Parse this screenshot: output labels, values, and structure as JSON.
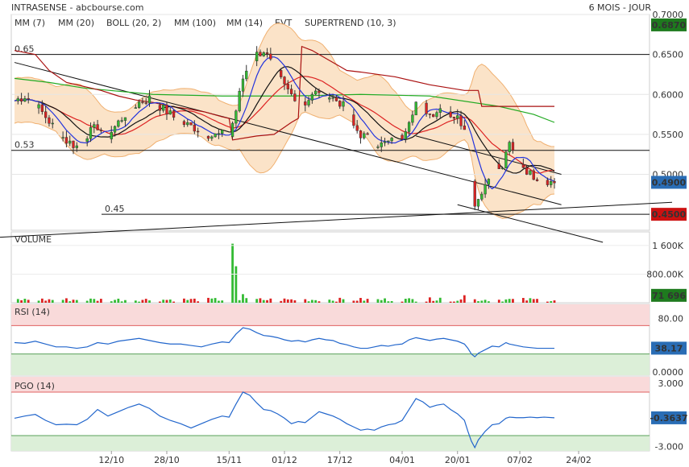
{
  "header": {
    "title": "INTRASENSE - abcbourse.com",
    "period": "6 MOIS - JOUR"
  },
  "legend": [
    {
      "label": "MM (7)",
      "color": "#2233dd"
    },
    {
      "label": "MM (20)",
      "color": "#dd2222"
    },
    {
      "label": "BOLL (20, 2)",
      "color": "#f0a050"
    },
    {
      "label": "MM (100)",
      "color": "#22aa22"
    },
    {
      "label": "MM (14)",
      "color": "#111111"
    },
    {
      "label": "EVT",
      "color": "#111111"
    },
    {
      "label": "SUPERTREND (10, 3)",
      "color": "#aa1111"
    }
  ],
  "colors": {
    "up": "#33bb33",
    "down": "#dd2222",
    "band": "#fbe3c8",
    "band_line": "#f0b070"
  },
  "chart_data": [
    {
      "type": "candlestick",
      "panel": "price",
      "ylim": [
        0.43,
        0.7
      ],
      "yticks": [
        "0.7000",
        "0.6500",
        "0.6000",
        "0.5500",
        "0.5000"
      ],
      "x_labels": [
        {
          "label": "12/10",
          "day": 28
        },
        {
          "label": "28/10",
          "day": 44
        },
        {
          "label": "15/11",
          "day": 62
        },
        {
          "label": "01/12",
          "day": 78
        },
        {
          "label": "17/12",
          "day": 94
        },
        {
          "label": "04/01",
          "day": 112
        },
        {
          "label": "20/01",
          "day": 128
        },
        {
          "label": "07/02",
          "day": 146
        },
        {
          "label": "24/02",
          "day": 163
        }
      ],
      "last_day": 156,
      "badges": [
        {
          "text": "0.6870",
          "value": 0.687,
          "bg": "#1e7a1e"
        },
        {
          "text": "0.4900",
          "value": 0.49,
          "bg": "#2a6db5"
        },
        {
          "text": "0.4500",
          "value": 0.45,
          "bg": "#cc1111"
        }
      ],
      "hlines": [
        {
          "value": 0.65,
          "label": "0.65"
        },
        {
          "value": 0.53,
          "label": "0.53"
        },
        {
          "value": 0.45,
          "label": "0.45"
        }
      ],
      "anchors": [
        [
          0,
          0.592
        ],
        [
          3,
          0.598
        ],
        [
          6,
          0.588
        ],
        [
          9,
          0.572
        ],
        [
          12,
          0.555
        ],
        [
          15,
          0.542
        ],
        [
          18,
          0.535
        ],
        [
          21,
          0.55
        ],
        [
          24,
          0.56
        ],
        [
          27,
          0.548
        ],
        [
          30,
          0.565
        ],
        [
          33,
          0.58
        ],
        [
          36,
          0.59
        ],
        [
          39,
          0.595
        ],
        [
          42,
          0.585
        ],
        [
          45,
          0.575
        ],
        [
          48,
          0.565
        ],
        [
          51,
          0.56
        ],
        [
          54,
          0.555
        ],
        [
          57,
          0.548
        ],
        [
          60,
          0.55
        ],
        [
          62,
          0.548
        ],
        [
          64,
          0.58
        ],
        [
          66,
          0.62
        ],
        [
          68,
          0.64
        ],
        [
          70,
          0.65
        ],
        [
          72,
          0.655
        ],
        [
          74,
          0.64
        ],
        [
          76,
          0.625
        ],
        [
          78,
          0.61
        ],
        [
          80,
          0.6
        ],
        [
          82,
          0.595
        ],
        [
          84,
          0.59
        ],
        [
          86,
          0.598
        ],
        [
          88,
          0.605
        ],
        [
          90,
          0.6
        ],
        [
          92,
          0.595
        ],
        [
          94,
          0.59
        ],
        [
          96,
          0.58
        ],
        [
          98,
          0.56
        ],
        [
          100,
          0.55
        ],
        [
          102,
          0.545
        ],
        [
          104,
          0.54
        ],
        [
          106,
          0.537
        ],
        [
          108,
          0.54
        ],
        [
          110,
          0.542
        ],
        [
          112,
          0.548
        ],
        [
          114,
          0.57
        ],
        [
          116,
          0.59
        ],
        [
          118,
          0.585
        ],
        [
          120,
          0.575
        ],
        [
          122,
          0.58
        ],
        [
          124,
          0.585
        ],
        [
          126,
          0.575
        ],
        [
          128,
          0.57
        ],
        [
          130,
          0.56
        ],
        [
          131,
          0.53
        ],
        [
          132,
          0.49
        ],
        [
          133,
          0.465
        ],
        [
          134,
          0.47
        ],
        [
          135,
          0.48
        ],
        [
          137,
          0.495
        ],
        [
          139,
          0.51
        ],
        [
          141,
          0.505
        ],
        [
          142,
          0.53
        ],
        [
          143,
          0.535
        ],
        [
          145,
          0.52
        ],
        [
          147,
          0.51
        ],
        [
          149,
          0.5
        ],
        [
          151,
          0.497
        ],
        [
          153,
          0.495
        ],
        [
          155,
          0.49
        ],
        [
          156,
          0.49
        ]
      ],
      "mm100": [
        [
          0,
          0.62
        ],
        [
          10,
          0.615
        ],
        [
          20,
          0.608
        ],
        [
          40,
          0.6
        ],
        [
          60,
          0.598
        ],
        [
          80,
          0.598
        ],
        [
          100,
          0.6
        ],
        [
          120,
          0.598
        ],
        [
          140,
          0.585
        ],
        [
          150,
          0.575
        ],
        [
          156,
          0.565
        ]
      ],
      "supertrend": [
        [
          0,
          0.655
        ],
        [
          6,
          0.65
        ],
        [
          10,
          0.63
        ],
        [
          15,
          0.615
        ],
        [
          20,
          0.61
        ],
        [
          25,
          0.605
        ],
        [
          30,
          0.598
        ],
        [
          35,
          0.593
        ],
        [
          40,
          0.59
        ],
        [
          45,
          0.585
        ],
        [
          50,
          0.582
        ],
        [
          55,
          0.578
        ],
        [
          60,
          0.572
        ],
        [
          62,
          0.57
        ],
        [
          63,
          0.543
        ],
        [
          70,
          0.548
        ],
        [
          75,
          0.55
        ],
        [
          80,
          0.565
        ],
        [
          82,
          0.57
        ],
        [
          83,
          0.66
        ],
        [
          86,
          0.655
        ],
        [
          90,
          0.645
        ],
        [
          94,
          0.635
        ],
        [
          96,
          0.63
        ],
        [
          100,
          0.628
        ],
        [
          110,
          0.622
        ],
        [
          120,
          0.612
        ],
        [
          130,
          0.605
        ],
        [
          134,
          0.605
        ],
        [
          135,
          0.585
        ],
        [
          156,
          0.585
        ]
      ],
      "evt_lines": [
        {
          "from": [
            0,
            0.64
          ],
          "to": [
            158,
            0.462
          ]
        },
        {
          "from": [
            116,
            0.548
          ],
          "to": [
            158,
            0.5
          ]
        },
        {
          "from": [
            -10,
            0.42
          ],
          "to": [
            190,
            0.465
          ]
        },
        {
          "from": [
            128,
            0.462
          ],
          "to": [
            170,
            0.415
          ]
        }
      ]
    },
    {
      "type": "bar",
      "panel": "volume",
      "title": "VOLUME",
      "ylim": [
        0,
        1800000
      ],
      "yticks": [
        "1 600K",
        "800.00K"
      ],
      "badge": {
        "text": "71 696",
        "value": 71696,
        "bg": "#1e7a1e"
      },
      "spikes": [
        [
          63,
          1650000
        ],
        [
          64,
          1020000
        ],
        [
          62,
          320000
        ],
        [
          66,
          240000
        ],
        [
          130,
          210000
        ],
        [
          132,
          160000
        ],
        [
          145,
          330000
        ],
        [
          120,
          150000
        ],
        [
          75,
          200000
        ]
      ]
    },
    {
      "type": "line",
      "panel": "rsi",
      "title": "RSI (14)",
      "ylim": [
        0,
        100
      ],
      "yticks": [
        "80.00",
        "0.0000"
      ],
      "zones": [
        {
          "from": 70,
          "to": 100,
          "color": "#f9dada",
          "line": "#e06060"
        },
        {
          "from": 0,
          "to": 30,
          "color": "#dcefd8",
          "line": "#5aa05a"
        }
      ],
      "badge": {
        "text": "38.17",
        "value": 38.17,
        "bg": "#2a6db5"
      },
      "points": [
        [
          0,
          46
        ],
        [
          3,
          45
        ],
        [
          6,
          48
        ],
        [
          9,
          44
        ],
        [
          12,
          40
        ],
        [
          15,
          40
        ],
        [
          18,
          38
        ],
        [
          21,
          40
        ],
        [
          24,
          46
        ],
        [
          27,
          44
        ],
        [
          30,
          48
        ],
        [
          33,
          50
        ],
        [
          36,
          52
        ],
        [
          39,
          49
        ],
        [
          42,
          46
        ],
        [
          45,
          44
        ],
        [
          48,
          44
        ],
        [
          51,
          42
        ],
        [
          54,
          40
        ],
        [
          57,
          44
        ],
        [
          60,
          47
        ],
        [
          62,
          46
        ],
        [
          64,
          58
        ],
        [
          66,
          67
        ],
        [
          68,
          65
        ],
        [
          70,
          60
        ],
        [
          72,
          56
        ],
        [
          74,
          55
        ],
        [
          76,
          53
        ],
        [
          78,
          50
        ],
        [
          80,
          48
        ],
        [
          82,
          49
        ],
        [
          84,
          47
        ],
        [
          86,
          50
        ],
        [
          88,
          52
        ],
        [
          90,
          50
        ],
        [
          92,
          49
        ],
        [
          94,
          45
        ],
        [
          96,
          43
        ],
        [
          98,
          40
        ],
        [
          100,
          38
        ],
        [
          102,
          38
        ],
        [
          104,
          40
        ],
        [
          106,
          42
        ],
        [
          108,
          41
        ],
        [
          110,
          43
        ],
        [
          112,
          44
        ],
        [
          114,
          50
        ],
        [
          116,
          53
        ],
        [
          118,
          51
        ],
        [
          120,
          49
        ],
        [
          122,
          51
        ],
        [
          124,
          52
        ],
        [
          126,
          50
        ],
        [
          128,
          48
        ],
        [
          130,
          44
        ],
        [
          131,
          38
        ],
        [
          132,
          30
        ],
        [
          133,
          26
        ],
        [
          134,
          31
        ],
        [
          136,
          36
        ],
        [
          138,
          41
        ],
        [
          140,
          40
        ],
        [
          142,
          46
        ],
        [
          143,
          44
        ],
        [
          145,
          42
        ],
        [
          147,
          40
        ],
        [
          149,
          39
        ],
        [
          151,
          38
        ],
        [
          153,
          38
        ],
        [
          156,
          38
        ]
      ]
    },
    {
      "type": "line",
      "panel": "pgo",
      "title": "PGO (14)",
      "ylim": [
        -3.4,
        3.4
      ],
      "yticks": [
        "3.000",
        "-3.000"
      ],
      "zones": [
        {
          "from": 2,
          "to": 3.4,
          "color": "#f9dada",
          "line": "#e06060"
        },
        {
          "from": -3.4,
          "to": -2,
          "color": "#dcefd8",
          "line": "#5aa05a"
        }
      ],
      "badge": {
        "text": "-0.3637",
        "value": -0.3637,
        "bg": "#2a6db5"
      },
      "points": [
        [
          0,
          -0.4
        ],
        [
          3,
          -0.2
        ],
        [
          6,
          -0.05
        ],
        [
          9,
          -0.6
        ],
        [
          12,
          -1.0
        ],
        [
          15,
          -0.95
        ],
        [
          18,
          -1.0
        ],
        [
          21,
          -0.5
        ],
        [
          24,
          0.4
        ],
        [
          27,
          -0.2
        ],
        [
          30,
          0.2
        ],
        [
          33,
          0.6
        ],
        [
          36,
          0.9
        ],
        [
          39,
          0.5
        ],
        [
          42,
          -0.2
        ],
        [
          45,
          -0.6
        ],
        [
          48,
          -0.9
        ],
        [
          51,
          -1.3
        ],
        [
          54,
          -0.9
        ],
        [
          57,
          -0.5
        ],
        [
          60,
          -0.2
        ],
        [
          62,
          -0.3
        ],
        [
          64,
          0.9
        ],
        [
          66,
          2.0
        ],
        [
          68,
          1.7
        ],
        [
          70,
          1.0
        ],
        [
          72,
          0.4
        ],
        [
          74,
          0.3
        ],
        [
          76,
          0.0
        ],
        [
          78,
          -0.4
        ],
        [
          80,
          -0.9
        ],
        [
          82,
          -0.7
        ],
        [
          84,
          -0.8
        ],
        [
          86,
          -0.3
        ],
        [
          88,
          0.2
        ],
        [
          90,
          0.0
        ],
        [
          92,
          -0.2
        ],
        [
          94,
          -0.5
        ],
        [
          96,
          -0.9
        ],
        [
          98,
          -1.2
        ],
        [
          100,
          -1.5
        ],
        [
          102,
          -1.4
        ],
        [
          104,
          -1.5
        ],
        [
          106,
          -1.2
        ],
        [
          108,
          -1.0
        ],
        [
          110,
          -0.9
        ],
        [
          112,
          -0.6
        ],
        [
          114,
          0.4
        ],
        [
          116,
          1.4
        ],
        [
          118,
          1.1
        ],
        [
          120,
          0.6
        ],
        [
          122,
          0.8
        ],
        [
          124,
          0.9
        ],
        [
          126,
          0.4
        ],
        [
          128,
          0.0
        ],
        [
          130,
          -0.6
        ],
        [
          131,
          -1.6
        ],
        [
          132,
          -2.5
        ],
        [
          133,
          -3.1
        ],
        [
          134,
          -2.4
        ],
        [
          136,
          -1.6
        ],
        [
          138,
          -1.0
        ],
        [
          140,
          -0.9
        ],
        [
          142,
          -0.4
        ],
        [
          143,
          -0.3
        ],
        [
          145,
          -0.35
        ],
        [
          147,
          -0.35
        ],
        [
          149,
          -0.3
        ],
        [
          151,
          -0.35
        ],
        [
          153,
          -0.3
        ],
        [
          156,
          -0.36
        ]
      ]
    }
  ]
}
